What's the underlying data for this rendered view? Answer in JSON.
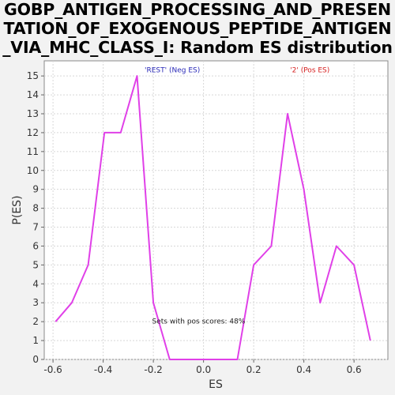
{
  "chart_data": {
    "type": "line",
    "title_lines": [
      "GOBP_ANTIGEN_PROCESSING_AND_PRESEN",
      "TATION_OF_EXOGENOUS_PEPTIDE_ANTIGEN",
      "_VIA_MHC_CLASS_I: Random ES distribution"
    ],
    "xlabel": "ES",
    "ylabel": "P(ES)",
    "xlim": [
      -0.635,
      0.735
    ],
    "ylim": [
      0,
      15.8
    ],
    "xticks": [
      -0.6,
      -0.4,
      -0.2,
      0.0,
      0.2,
      0.4,
      0.6
    ],
    "xtick_labels": [
      "-0.6",
      "-0.4",
      "-0.2",
      "0.0",
      "0.2",
      "0.4",
      "0.6"
    ],
    "yticks": [
      0,
      1,
      2,
      3,
      4,
      5,
      6,
      7,
      8,
      9,
      10,
      11,
      12,
      13,
      14,
      15
    ],
    "ytick_labels": [
      "0",
      "1",
      "2",
      "3",
      "4",
      "5",
      "6",
      "7",
      "8",
      "9",
      "10",
      "11",
      "12",
      "13",
      "14",
      "15"
    ],
    "grid": true,
    "series": [
      {
        "color": "#e040e8",
        "x": [
          -0.59,
          -0.525,
          -0.46,
          -0.395,
          -0.33,
          -0.265,
          -0.2,
          -0.135,
          -0.07,
          0.0,
          0.07,
          0.135,
          0.2,
          0.27,
          0.335,
          0.4,
          0.465,
          0.53,
          0.6,
          0.665
        ],
        "y": [
          2,
          3,
          5,
          12,
          12,
          15,
          3,
          0,
          0,
          0,
          0,
          0,
          5,
          6,
          13,
          9,
          3,
          6,
          5,
          1
        ]
      }
    ],
    "annotations": [
      {
        "text": "'REST' (Neg ES)",
        "x": -0.235,
        "y": 15.2,
        "color": "#2a2ab8"
      },
      {
        "text": "'2' (Pos ES)",
        "x": 0.345,
        "y": 15.2,
        "color": "#d62020"
      },
      {
        "text": "Sets with pos scores: 48%",
        "x": -0.205,
        "y": 1.9,
        "color": "#222222"
      }
    ]
  }
}
